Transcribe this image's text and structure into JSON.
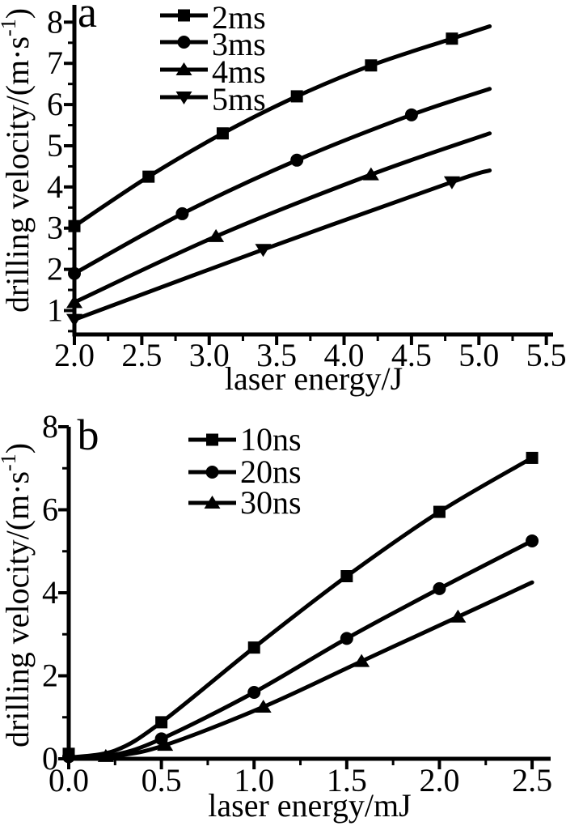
{
  "page": {
    "background": "#ffffff",
    "ink": "#000000"
  },
  "chart_data": [
    {
      "id": "a",
      "type": "line",
      "panel_label": "a",
      "xlabel": "laser energy/J",
      "ylabel": {
        "pre": "drilling velocity/(m·s",
        "sup": "-1",
        "post": ")"
      },
      "xlim": [
        2.0,
        5.55
      ],
      "ylim": [
        0.42,
        8.42
      ],
      "x_ticks": [
        {
          "v": 2.0,
          "label": "2.0"
        },
        {
          "v": 2.5,
          "label": "2.5"
        },
        {
          "v": 3.0,
          "label": "3.0"
        },
        {
          "v": 3.5,
          "label": "3.5"
        },
        {
          "v": 4.0,
          "label": "4.0"
        },
        {
          "v": 4.5,
          "label": "4.5"
        },
        {
          "v": 5.0,
          "label": "5.0"
        },
        {
          "v": 5.5,
          "label": "5.5"
        }
      ],
      "x_minor_step": 0.25,
      "y_ticks": [
        {
          "v": 1,
          "label": "1"
        },
        {
          "v": 2,
          "label": "2"
        },
        {
          "v": 3,
          "label": "3"
        },
        {
          "v": 4,
          "label": "4"
        },
        {
          "v": 5,
          "label": "5"
        },
        {
          "v": 6,
          "label": "6"
        },
        {
          "v": 7,
          "label": "7"
        },
        {
          "v": 8,
          "label": "8"
        }
      ],
      "y_minor_step": 0.5,
      "legend_position": "top-center",
      "grid": false,
      "series": [
        {
          "name": "2ms",
          "marker": "square",
          "markers": [
            [
              2.0,
              3.05
            ],
            [
              2.55,
              4.25
            ],
            [
              3.1,
              5.3
            ],
            [
              3.65,
              6.2
            ],
            [
              4.2,
              6.95
            ],
            [
              4.8,
              7.6
            ]
          ],
          "curve": [
            [
              2.0,
              3.05
            ],
            [
              2.55,
              4.25
            ],
            [
              3.1,
              5.3
            ],
            [
              3.65,
              6.2
            ],
            [
              4.2,
              6.95
            ],
            [
              4.8,
              7.6
            ],
            [
              5.08,
              7.9
            ]
          ]
        },
        {
          "name": "3ms",
          "marker": "circle",
          "markers": [
            [
              2.0,
              1.9
            ],
            [
              2.8,
              3.35
            ],
            [
              3.65,
              4.65
            ],
            [
              4.5,
              5.75
            ]
          ],
          "curve": [
            [
              2.0,
              1.9
            ],
            [
              2.8,
              3.35
            ],
            [
              3.65,
              4.65
            ],
            [
              4.5,
              5.75
            ],
            [
              5.08,
              6.38
            ]
          ]
        },
        {
          "name": "4ms",
          "marker": "triangle-up",
          "markers": [
            [
              2.0,
              1.2
            ],
            [
              3.05,
              2.8
            ],
            [
              4.2,
              4.3
            ]
          ],
          "curve": [
            [
              2.0,
              1.2
            ],
            [
              3.05,
              2.8
            ],
            [
              4.2,
              4.3
            ],
            [
              5.08,
              5.3
            ]
          ]
        },
        {
          "name": "5ms",
          "marker": "triangle-down",
          "markers": [
            [
              2.0,
              0.78
            ],
            [
              3.4,
              2.48
            ],
            [
              4.8,
              4.12
            ]
          ],
          "curve": [
            [
              2.0,
              0.78
            ],
            [
              3.4,
              2.48
            ],
            [
              4.8,
              4.12
            ],
            [
              5.08,
              4.4
            ]
          ]
        }
      ]
    },
    {
      "id": "b",
      "type": "line",
      "panel_label": "b",
      "xlabel": "laser energy/mJ",
      "ylabel": {
        "pre": "drilling velocity/(m·s",
        "sup": "-1",
        "post": ")"
      },
      "xlim": [
        0.0,
        2.6
      ],
      "ylim": [
        0.0,
        8.0
      ],
      "x_ticks": [
        {
          "v": 0.0,
          "label": "0.0"
        },
        {
          "v": 0.5,
          "label": "0.5"
        },
        {
          "v": 1.0,
          "label": "1.0"
        },
        {
          "v": 1.5,
          "label": "1.5"
        },
        {
          "v": 2.0,
          "label": "2.0"
        },
        {
          "v": 2.5,
          "label": "2.5"
        }
      ],
      "x_minor_step": 0.25,
      "y_ticks": [
        {
          "v": 0,
          "label": "0"
        },
        {
          "v": 2,
          "label": "2"
        },
        {
          "v": 4,
          "label": "4"
        },
        {
          "v": 6,
          "label": "6"
        },
        {
          "v": 8,
          "label": "8"
        }
      ],
      "y_minor_step": 1,
      "legend_position": "top-center",
      "grid": false,
      "series": [
        {
          "name": "10ns",
          "marker": "square",
          "markers": [
            [
              0.0,
              0.12
            ],
            [
              0.5,
              0.88
            ],
            [
              1.0,
              2.68
            ],
            [
              1.5,
              4.4
            ],
            [
              2.0,
              5.95
            ],
            [
              2.5,
              7.25
            ]
          ],
          "curve": [
            [
              0.0,
              0.03
            ],
            [
              0.25,
              0.2
            ],
            [
              0.5,
              0.88
            ],
            [
              1.0,
              2.68
            ],
            [
              1.5,
              4.4
            ],
            [
              2.0,
              5.95
            ],
            [
              2.5,
              7.25
            ]
          ]
        },
        {
          "name": "20ns",
          "marker": "circle",
          "markers": [
            [
              0.0,
              0.05
            ],
            [
              0.5,
              0.48
            ],
            [
              1.0,
              1.6
            ],
            [
              1.5,
              2.9
            ],
            [
              2.0,
              4.1
            ],
            [
              2.5,
              5.25
            ]
          ],
          "curve": [
            [
              0.0,
              0.02
            ],
            [
              0.25,
              0.1
            ],
            [
              0.5,
              0.48
            ],
            [
              1.0,
              1.6
            ],
            [
              1.5,
              2.9
            ],
            [
              2.0,
              4.1
            ],
            [
              2.5,
              5.25
            ]
          ]
        },
        {
          "name": "30ns",
          "marker": "triangle-up",
          "markers": [
            [
              0.2,
              0.06
            ],
            [
              0.52,
              0.33
            ],
            [
              1.05,
              1.25
            ],
            [
              1.58,
              2.35
            ],
            [
              2.1,
              3.42
            ]
          ],
          "curve": [
            [
              0.0,
              0.02
            ],
            [
              0.25,
              0.07
            ],
            [
              0.52,
              0.33
            ],
            [
              1.05,
              1.25
            ],
            [
              1.58,
              2.35
            ],
            [
              2.1,
              3.42
            ],
            [
              2.5,
              4.25
            ]
          ]
        }
      ]
    }
  ]
}
